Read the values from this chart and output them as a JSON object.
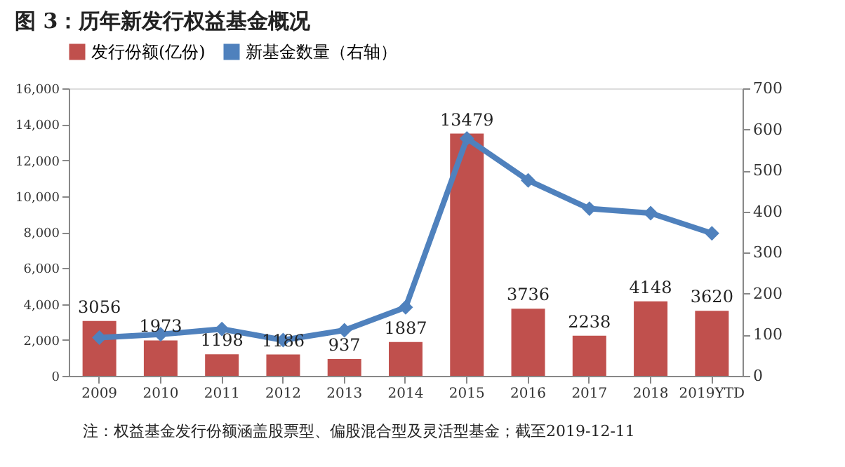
{
  "chart_data": {
    "type": "bar",
    "title": "图 3：历年新发行权益基金概况",
    "categories": [
      "2009",
      "2010",
      "2011",
      "2012",
      "2013",
      "2014",
      "2015",
      "2016",
      "2017",
      "2018",
      "2019YTD"
    ],
    "series": [
      {
        "name": "发行份额(亿份)",
        "color": "#c0504d",
        "values": [
          3056,
          1973,
          1198,
          1186,
          937,
          1887,
          13479,
          3736,
          2238,
          4148,
          3620
        ],
        "value_labels": [
          "3056",
          "1973",
          "1198",
          "1186",
          "937",
          "1887",
          "13479",
          "3736",
          "2238",
          "4148",
          "3620"
        ]
      },
      {
        "name": "新基金数量（右轴）",
        "type": "line",
        "axis": "y2",
        "color": "#4f81bd",
        "marker": "diamond",
        "values": [
          93,
          101,
          114,
          87,
          111,
          167,
          578,
          476,
          407,
          396,
          347
        ]
      }
    ],
    "ylim": [
      0,
      16000
    ],
    "yticks": [
      {
        "value": 0,
        "label": "0"
      },
      {
        "value": 2000,
        "label": "2,000"
      },
      {
        "value": 4000,
        "label": "4,000"
      },
      {
        "value": 6000,
        "label": "6,000"
      },
      {
        "value": 8000,
        "label": "8,000"
      },
      {
        "value": 10000,
        "label": "10,000"
      },
      {
        "value": 12000,
        "label": "12,000"
      },
      {
        "value": 14000,
        "label": "14,000"
      },
      {
        "value": 16000,
        "label": "16,000"
      }
    ],
    "y2lim": [
      0,
      700
    ],
    "y2ticks": [
      0,
      100,
      200,
      300,
      400,
      500,
      600,
      700
    ],
    "grid": false,
    "legend": "top",
    "annotations": [
      "注：权益基金发行份额涵盖股票型、偏股混合型及灵活型基金；截至2019-12-11"
    ]
  }
}
